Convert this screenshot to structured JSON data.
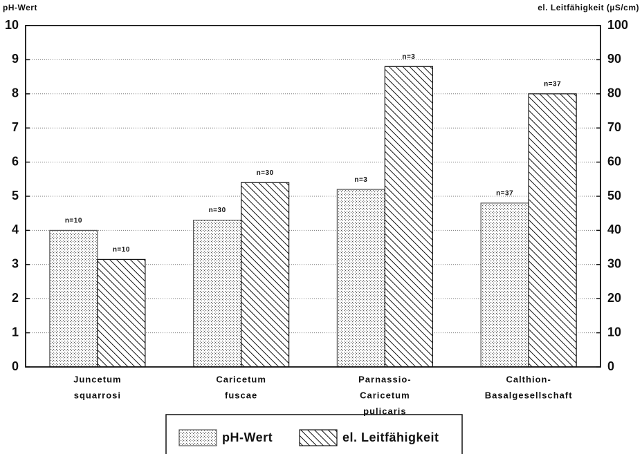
{
  "chart_data": {
    "type": "bar",
    "ylabel": "pH-Wert",
    "y2label": "el. Leitfähigkeit (µS/cm)",
    "categories": [
      [
        "Juncetum",
        "squarrosi"
      ],
      [
        "Caricetum",
        "fuscae"
      ],
      [
        "Parnassio-",
        "Caricetum",
        "pulicaris"
      ],
      [
        "Calthion-",
        "Basalgesellschaft"
      ]
    ],
    "series": [
      {
        "name": "pH-Wert",
        "pattern": "dots",
        "color": "#555555",
        "values": [
          4.0,
          4.3,
          5.2,
          4.8
        ],
        "n_labels": [
          "n=10",
          "n=30",
          "n=3",
          "n=37"
        ]
      },
      {
        "name": "el. Leitfähigkeit",
        "pattern": "hatch",
        "color": "#111111",
        "axis": "y2",
        "values": [
          31.5,
          54,
          88,
          80
        ],
        "n_labels": [
          "n=10",
          "n=30",
          "n=3",
          "n=37"
        ]
      }
    ],
    "ylim": [
      0,
      10
    ],
    "yticks": [
      0,
      1,
      2,
      3,
      4,
      5,
      6,
      7,
      8,
      9,
      10
    ],
    "y2lim": [
      0,
      100
    ],
    "y2ticks": [
      0,
      10,
      20,
      30,
      40,
      50,
      60,
      70,
      80,
      90,
      100
    ],
    "grid": true
  }
}
